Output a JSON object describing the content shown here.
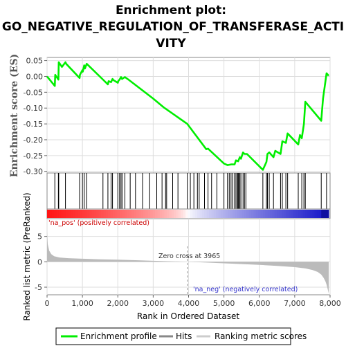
{
  "title": {
    "line1": "Enrichment plot:",
    "line2": "GO_NEGATIVE_REGULATION_OF_TRANSFERASE_ACTI",
    "line3": "VITY"
  },
  "colors": {
    "enrichment": "#00ee00",
    "hits": "#000000",
    "ranking_fill": "#bbbbbb",
    "grid": "#dddddd",
    "pos_label": "#cc0000",
    "neg_label": "#3333cc",
    "zero_line": "#999999"
  },
  "chart_data": [
    {
      "type": "line",
      "name": "enrichment-plot",
      "ylabel": "Enrichment score (ES)",
      "xlim": [
        0,
        8000
      ],
      "ylim": [
        -0.305,
        0.06
      ],
      "y_ticks": [
        0.05,
        0.0,
        -0.05,
        -0.1,
        -0.15,
        -0.2,
        -0.25,
        -0.3
      ],
      "y_tick_labels": [
        "0.05",
        "0.00",
        "-0.05",
        "-0.10",
        "-0.15",
        "-0.20",
        "-0.25",
        "-0.30"
      ],
      "grid": true,
      "series": [
        {
          "name": "Enrichment profile",
          "x": [
            0,
            220,
            230,
            320,
            330,
            420,
            520,
            540,
            920,
            930,
            1000,
            1010,
            1050,
            1070,
            1120,
            1580,
            1720,
            1740,
            1810,
            1850,
            1880,
            2000,
            2010,
            2050,
            2090,
            2120,
            2200,
            2300,
            3000,
            3300,
            3350,
            3965,
            4500,
            4550,
            5000,
            5100,
            5200,
            5300,
            5340,
            5400,
            5450,
            5480,
            5540,
            5580,
            5650,
            6100,
            6200,
            6230,
            6280,
            6400,
            6450,
            6600,
            6650,
            6750,
            6800,
            7100,
            7150,
            7200,
            7260,
            7300,
            7750,
            7800,
            7900,
            7960
          ],
          "y": [
            0.0,
            -0.03,
            0.005,
            -0.01,
            0.045,
            0.03,
            0.045,
            0.04,
            -0.005,
            0.005,
            0.02,
            0.015,
            0.035,
            0.025,
            0.04,
            -0.01,
            -0.025,
            -0.015,
            -0.018,
            -0.008,
            -0.012,
            -0.02,
            -0.015,
            -0.01,
            -0.002,
            -0.008,
            -0.002,
            -0.01,
            -0.07,
            -0.098,
            -0.102,
            -0.15,
            -0.23,
            -0.228,
            -0.275,
            -0.28,
            -0.278,
            -0.278,
            -0.265,
            -0.268,
            -0.255,
            -0.26,
            -0.24,
            -0.245,
            -0.245,
            -0.295,
            -0.27,
            -0.245,
            -0.24,
            -0.255,
            -0.235,
            -0.245,
            -0.205,
            -0.21,
            -0.18,
            -0.215,
            -0.185,
            -0.195,
            -0.15,
            -0.08,
            -0.14,
            -0.07,
            0.01,
            0.002
          ]
        }
      ]
    },
    {
      "type": "hits",
      "name": "hit-ticks",
      "x": [
        220,
        320,
        330,
        520,
        920,
        1000,
        1050,
        1120,
        1580,
        1720,
        1810,
        1850,
        2000,
        2050,
        2090,
        2120,
        2200,
        2350,
        2500,
        2700,
        2900,
        3100,
        3250,
        3350,
        3380,
        3550,
        3700,
        3965,
        4050,
        4150,
        4250,
        4300,
        4450,
        4550,
        4650,
        4800,
        5000,
        5100,
        5150,
        5200,
        5250,
        5300,
        5340,
        5380,
        5400,
        5420,
        5450,
        5480,
        5540,
        5580,
        5620,
        6100,
        6200,
        6230,
        6280,
        6400,
        6600,
        6650,
        6750,
        6800,
        7100,
        7200,
        7260,
        7300,
        7750,
        7900
      ]
    },
    {
      "type": "heatmap",
      "name": "rank-colorbar",
      "x_range": [
        0,
        7960
      ],
      "zero_cross": 3965
    },
    {
      "type": "area",
      "name": "ranked-list-metric",
      "ylabel": "Ranked list metric (PreRanked)",
      "xlabel": "Rank in Ordered Dataset",
      "xlim": [
        0,
        8000
      ],
      "ylim": [
        -6.5,
        8.5
      ],
      "x_ticks": [
        0,
        1000,
        2000,
        3000,
        4000,
        5000,
        6000,
        7000,
        8000
      ],
      "x_tick_labels": [
        "0",
        "1,000",
        "2,000",
        "3,000",
        "4,000",
        "5,000",
        "6,000",
        "7,000",
        "8,000"
      ],
      "y_ticks": [
        5,
        0,
        -5
      ],
      "y_tick_labels": [
        "5",
        "0",
        "-5"
      ],
      "series": [
        {
          "name": "Ranking metric scores",
          "x": [
            0,
            20,
            60,
            120,
            200,
            350,
            600,
            1000,
            1500,
            2000,
            2500,
            3000,
            3500,
            3965,
            4500,
            5000,
            5500,
            6000,
            6500,
            7000,
            7300,
            7500,
            7650,
            7750,
            7820,
            7870,
            7900,
            7930,
            7950,
            7960
          ],
          "y": [
            6.0,
            3.5,
            2.2,
            1.5,
            1.1,
            0.85,
            0.72,
            0.6,
            0.5,
            0.42,
            0.32,
            0.2,
            0.1,
            0.0,
            -0.15,
            -0.3,
            -0.45,
            -0.6,
            -0.8,
            -1.05,
            -1.3,
            -1.6,
            -2.0,
            -2.5,
            -3.2,
            -3.9,
            -4.5,
            -5.3,
            -5.9,
            -6.2
          ]
        }
      ],
      "annotations": {
        "zero_cross": "Zero cross at 3965",
        "pos_label": "'na_pos' (positively correlated)",
        "neg_label": "'na_neg' (negatively correlated)"
      }
    }
  ],
  "legend": {
    "items": [
      {
        "label": "Enrichment profile",
        "color": "#00ee00"
      },
      {
        "label": "Hits",
        "color": "#888888"
      },
      {
        "label": "Ranking metric scores",
        "color": "#cccccc"
      }
    ]
  }
}
